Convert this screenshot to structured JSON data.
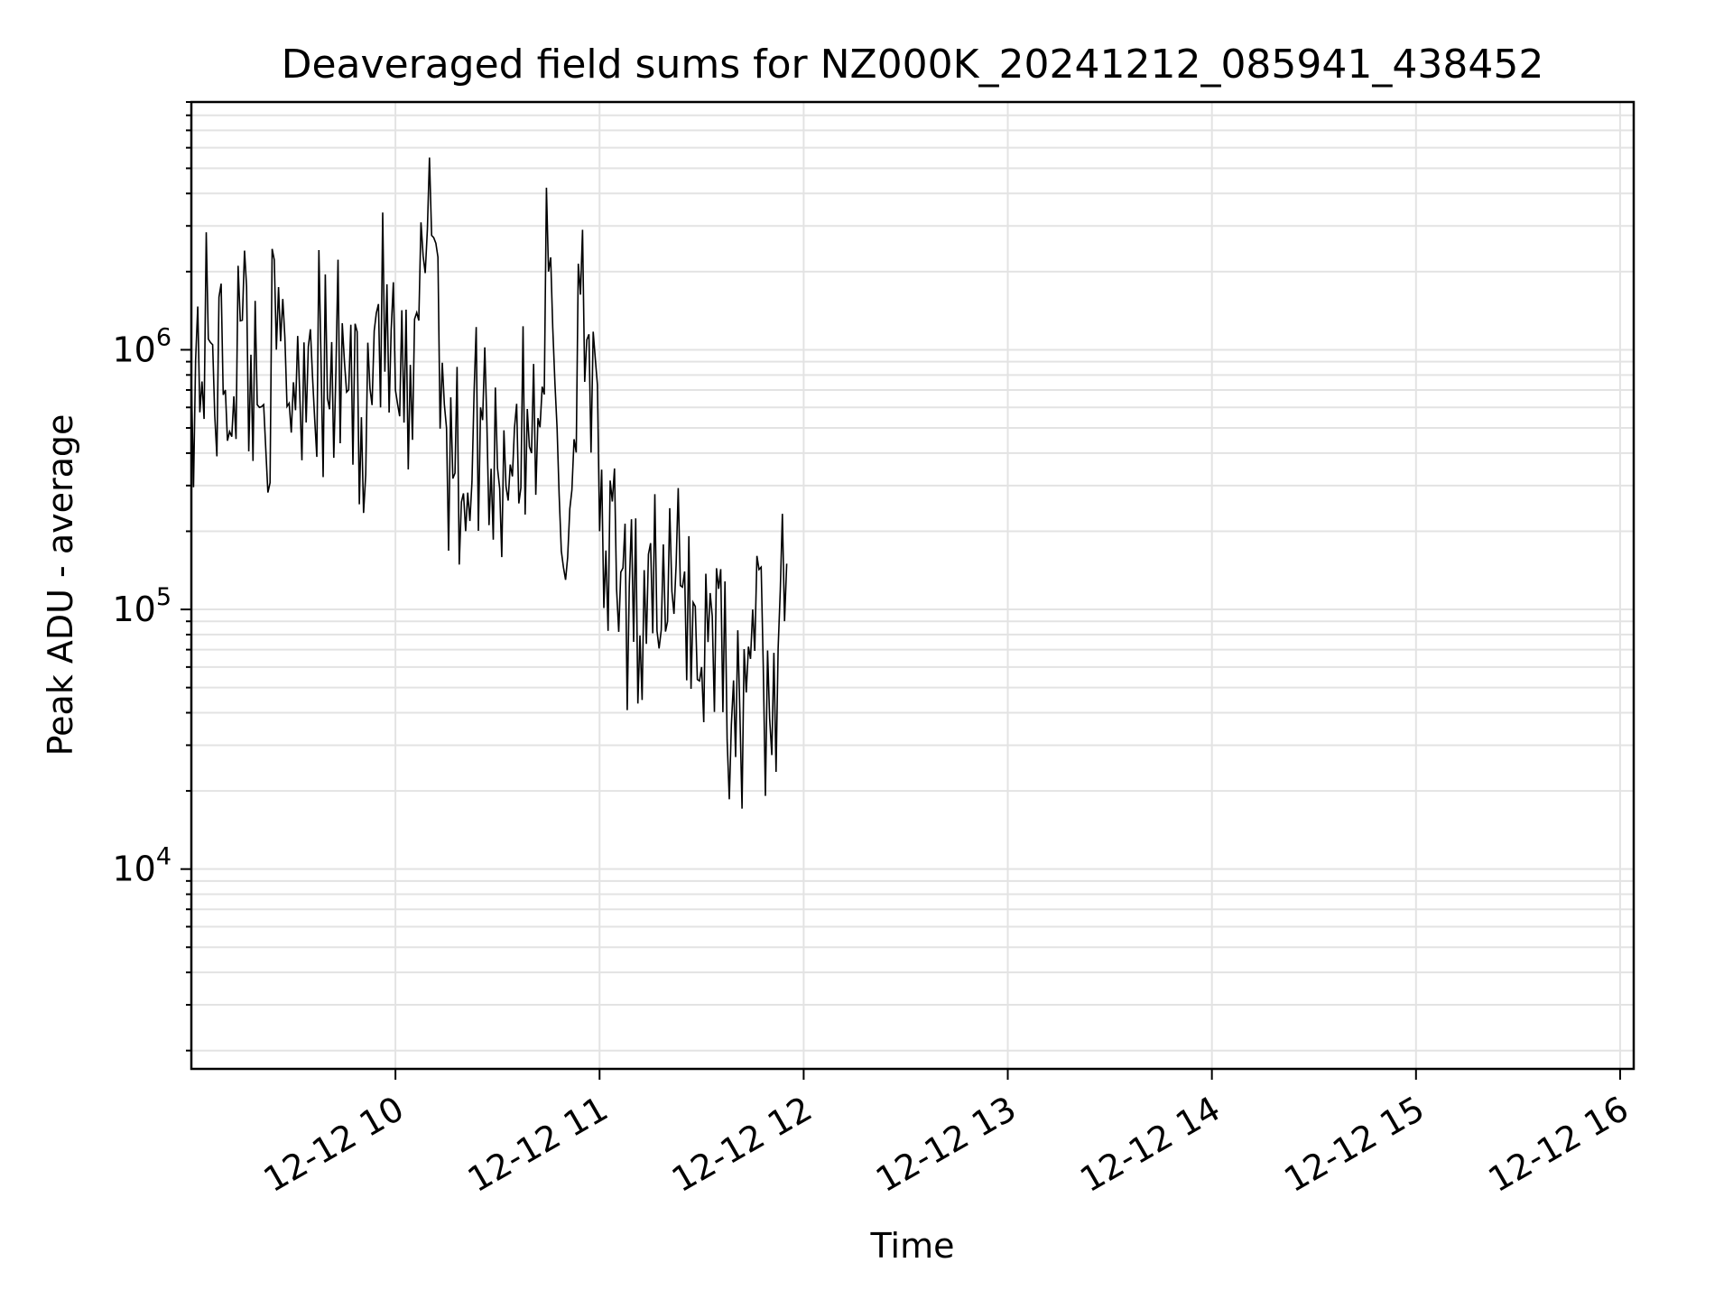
{
  "chart_data": {
    "type": "line",
    "title": "Deaveraged field sums for NZ000K_20241212_085941_438452",
    "xlabel": "Time",
    "ylabel": "Peak ADU - average",
    "x_scale": "time",
    "y_scale": "log",
    "xlim": [
      "2024-12-12 09:00",
      "2024-12-12 16:04"
    ],
    "ylim": [
      1700,
      9000000
    ],
    "grid": true,
    "x_tick_labels": [
      "12-12 10",
      "12-12 11",
      "12-12 12",
      "12-12 13",
      "12-12 14",
      "12-12 15",
      "12-12 16"
    ],
    "x_ticks": [
      "2024-12-12 10:00",
      "2024-12-12 11:00",
      "2024-12-12 12:00",
      "2024-12-12 13:00",
      "2024-12-12 14:00",
      "2024-12-12 15:00",
      "2024-12-12 16:00"
    ],
    "y_ticks": [
      {
        "value": 10000,
        "base": "10",
        "exp": "4"
      },
      {
        "value": 100000,
        "base": "10",
        "exp": "5"
      },
      {
        "value": 1000000,
        "base": "10",
        "exp": "6"
      }
    ],
    "series": [
      {
        "color": "#000000",
        "points": [
          [
            "09:00",
            800000
          ],
          [
            "09:05",
            1100000
          ],
          [
            "09:10",
            700000
          ],
          [
            "09:15",
            1300000
          ],
          [
            "09:20",
            600000
          ],
          [
            "09:25",
            1000000
          ],
          [
            "09:30",
            750000
          ],
          [
            "09:35",
            1200000
          ],
          [
            "09:40",
            650000
          ],
          [
            "09:45",
            900000
          ],
          [
            "09:50",
            550000
          ],
          [
            "09:55",
            1500000
          ],
          [
            "10:00",
            700000
          ],
          [
            "10:05",
            450000
          ],
          [
            "10:10",
            5500000
          ],
          [
            "10:15",
            500000
          ],
          [
            "10:20",
            280000
          ],
          [
            "10:25",
            600000
          ],
          [
            "10:30",
            350000
          ],
          [
            "10:35",
            500000
          ],
          [
            "10:40",
            400000
          ],
          [
            "10:45",
            2000000
          ],
          [
            "10:50",
            130000
          ],
          [
            "10:55",
            2900000
          ],
          [
            "11:00",
            200000
          ],
          [
            "11:05",
            120000
          ],
          [
            "11:10",
            75000
          ],
          [
            "11:15",
            180000
          ],
          [
            "11:20",
            90000
          ],
          [
            "11:25",
            140000
          ],
          [
            "11:30",
            60000
          ],
          [
            "11:35",
            120000
          ],
          [
            "11:40",
            27000
          ],
          [
            "11:45",
            100000
          ],
          [
            "11:50",
            38000
          ],
          [
            "11:55",
            150000
          ]
        ]
      }
    ]
  }
}
